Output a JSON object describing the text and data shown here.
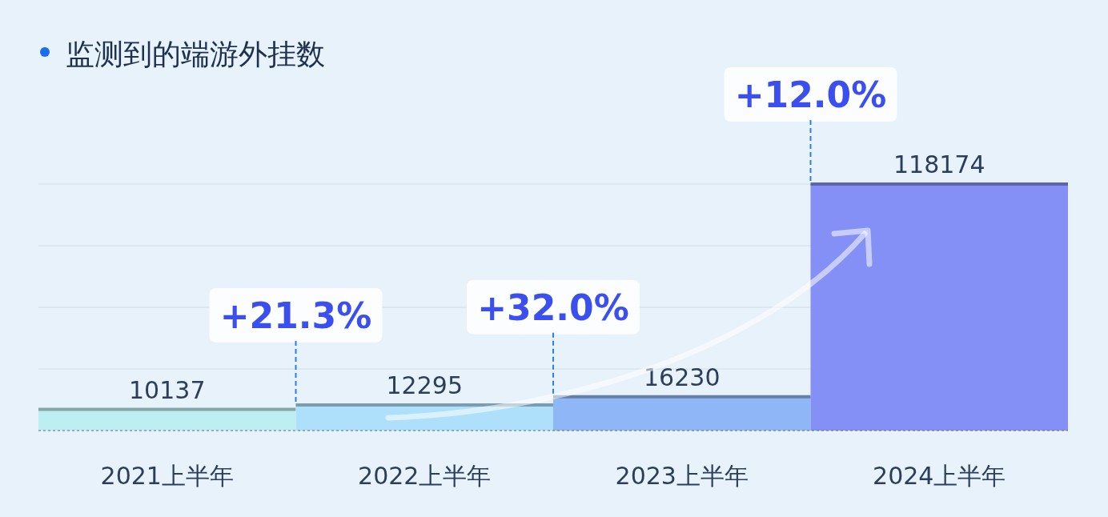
{
  "chart_data": {
    "type": "bar",
    "title": "监测到的端游外挂数",
    "categories": [
      "2021上半年",
      "2022上半年",
      "2023上半年",
      "2024上半年"
    ],
    "values": [
      10137,
      12295,
      16230,
      118174
    ],
    "colors": [
      "#bdeef2",
      "#aee0fb",
      "#8fb6f6",
      "#8490f5"
    ],
    "data_labels": true,
    "grid": "y",
    "annotations": [
      "+21.3%",
      "+32.0%",
      "+12.0%"
    ]
  }
}
